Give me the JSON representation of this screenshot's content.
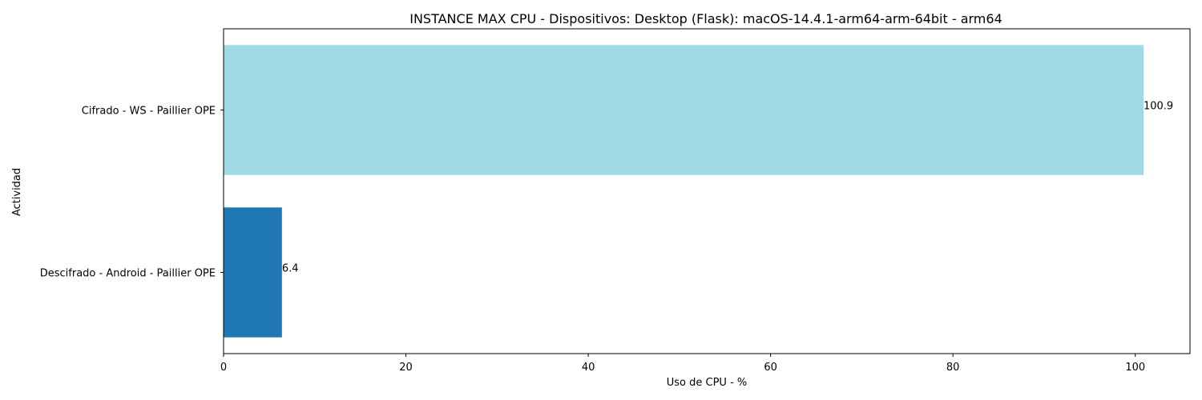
{
  "chart_data": {
    "type": "bar",
    "orientation": "horizontal",
    "title": "INSTANCE MAX CPU - Dispositivos: Desktop (Flask): macOS-14.4.1-arm64-arm-64bit - arm64",
    "xlabel": "Uso de CPU - %",
    "ylabel": "Actividad",
    "categories": [
      "Cifrado - WS - Paillier OPE",
      "Descifrado - Android - Paillier OPE"
    ],
    "values": [
      100.9,
      6.4
    ],
    "value_labels": [
      "100.9",
      "6.4"
    ],
    "bar_colors": [
      "#9fdae4",
      "#1f77b4"
    ],
    "xlim": [
      0,
      106
    ],
    "xticks": [
      0,
      20,
      40,
      60,
      80,
      100
    ],
    "grid": false,
    "legend": "none"
  }
}
